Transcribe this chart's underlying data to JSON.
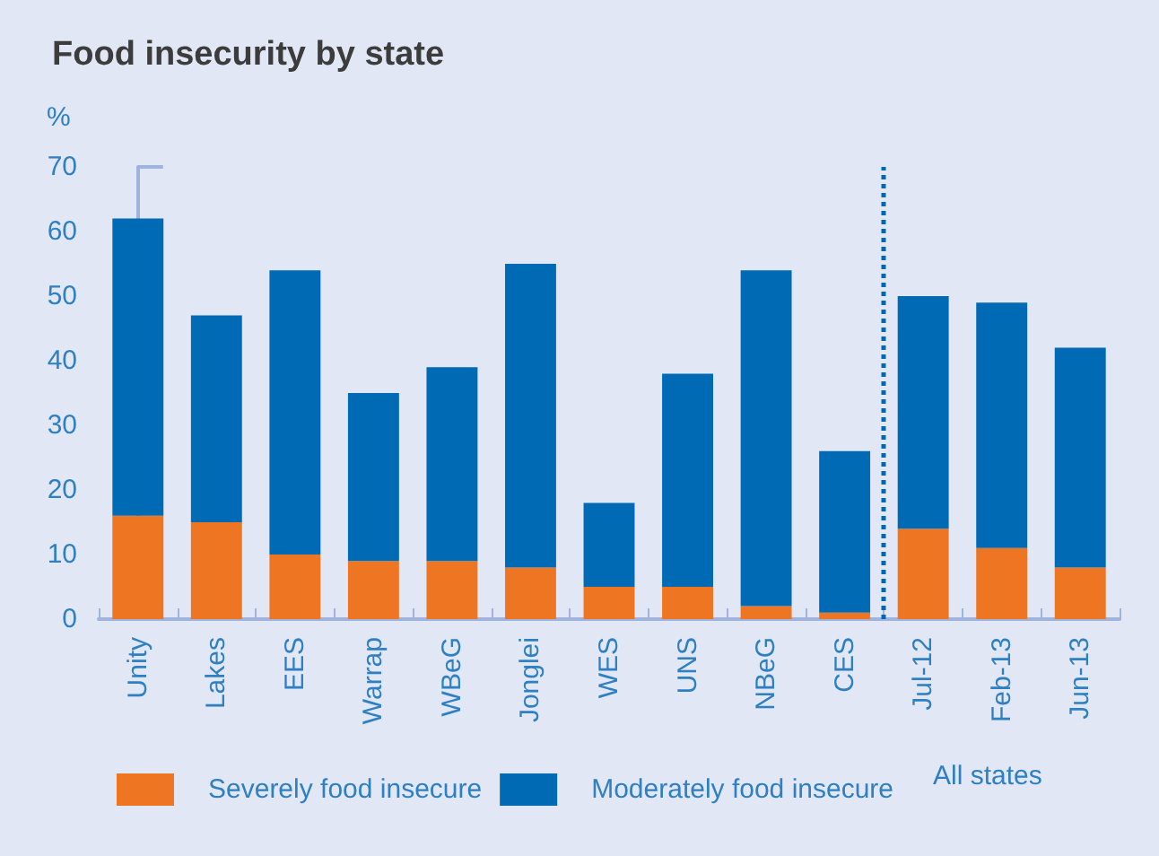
{
  "chart_data": {
    "type": "bar",
    "title": "Food insecurity by state",
    "ylabel": "%",
    "categories": [
      "Unity",
      "Lakes",
      "EES",
      "Warrap",
      "WBeG",
      "Jonglei",
      "WES",
      "UNS",
      "NBeG",
      "CES",
      "Jul-12",
      "Feb-13",
      "Jun-13"
    ],
    "series": [
      {
        "name": "Severely food insecure",
        "color": "#ee7623",
        "values": [
          16,
          15,
          10,
          9,
          9,
          8,
          5,
          5,
          2,
          1,
          14,
          11,
          8
        ]
      },
      {
        "name": "Moderately food insecure",
        "color": "#006bb4",
        "values": [
          46,
          32,
          44,
          26,
          30,
          47,
          13,
          33,
          52,
          25,
          36,
          38,
          34
        ]
      }
    ],
    "stacked": true,
    "ylim": [
      0,
      70
    ],
    "yticks": [
      0,
      10,
      20,
      30,
      40,
      50,
      60,
      70
    ],
    "grid": false,
    "legend": "bottom left",
    "ref_lines": [
      {
        "axis": "x",
        "value": "Jul-12",
        "color": "#0068b3",
        "line_style": "dotted"
      }
    ],
    "annotations": [
      "All states"
    ]
  }
}
